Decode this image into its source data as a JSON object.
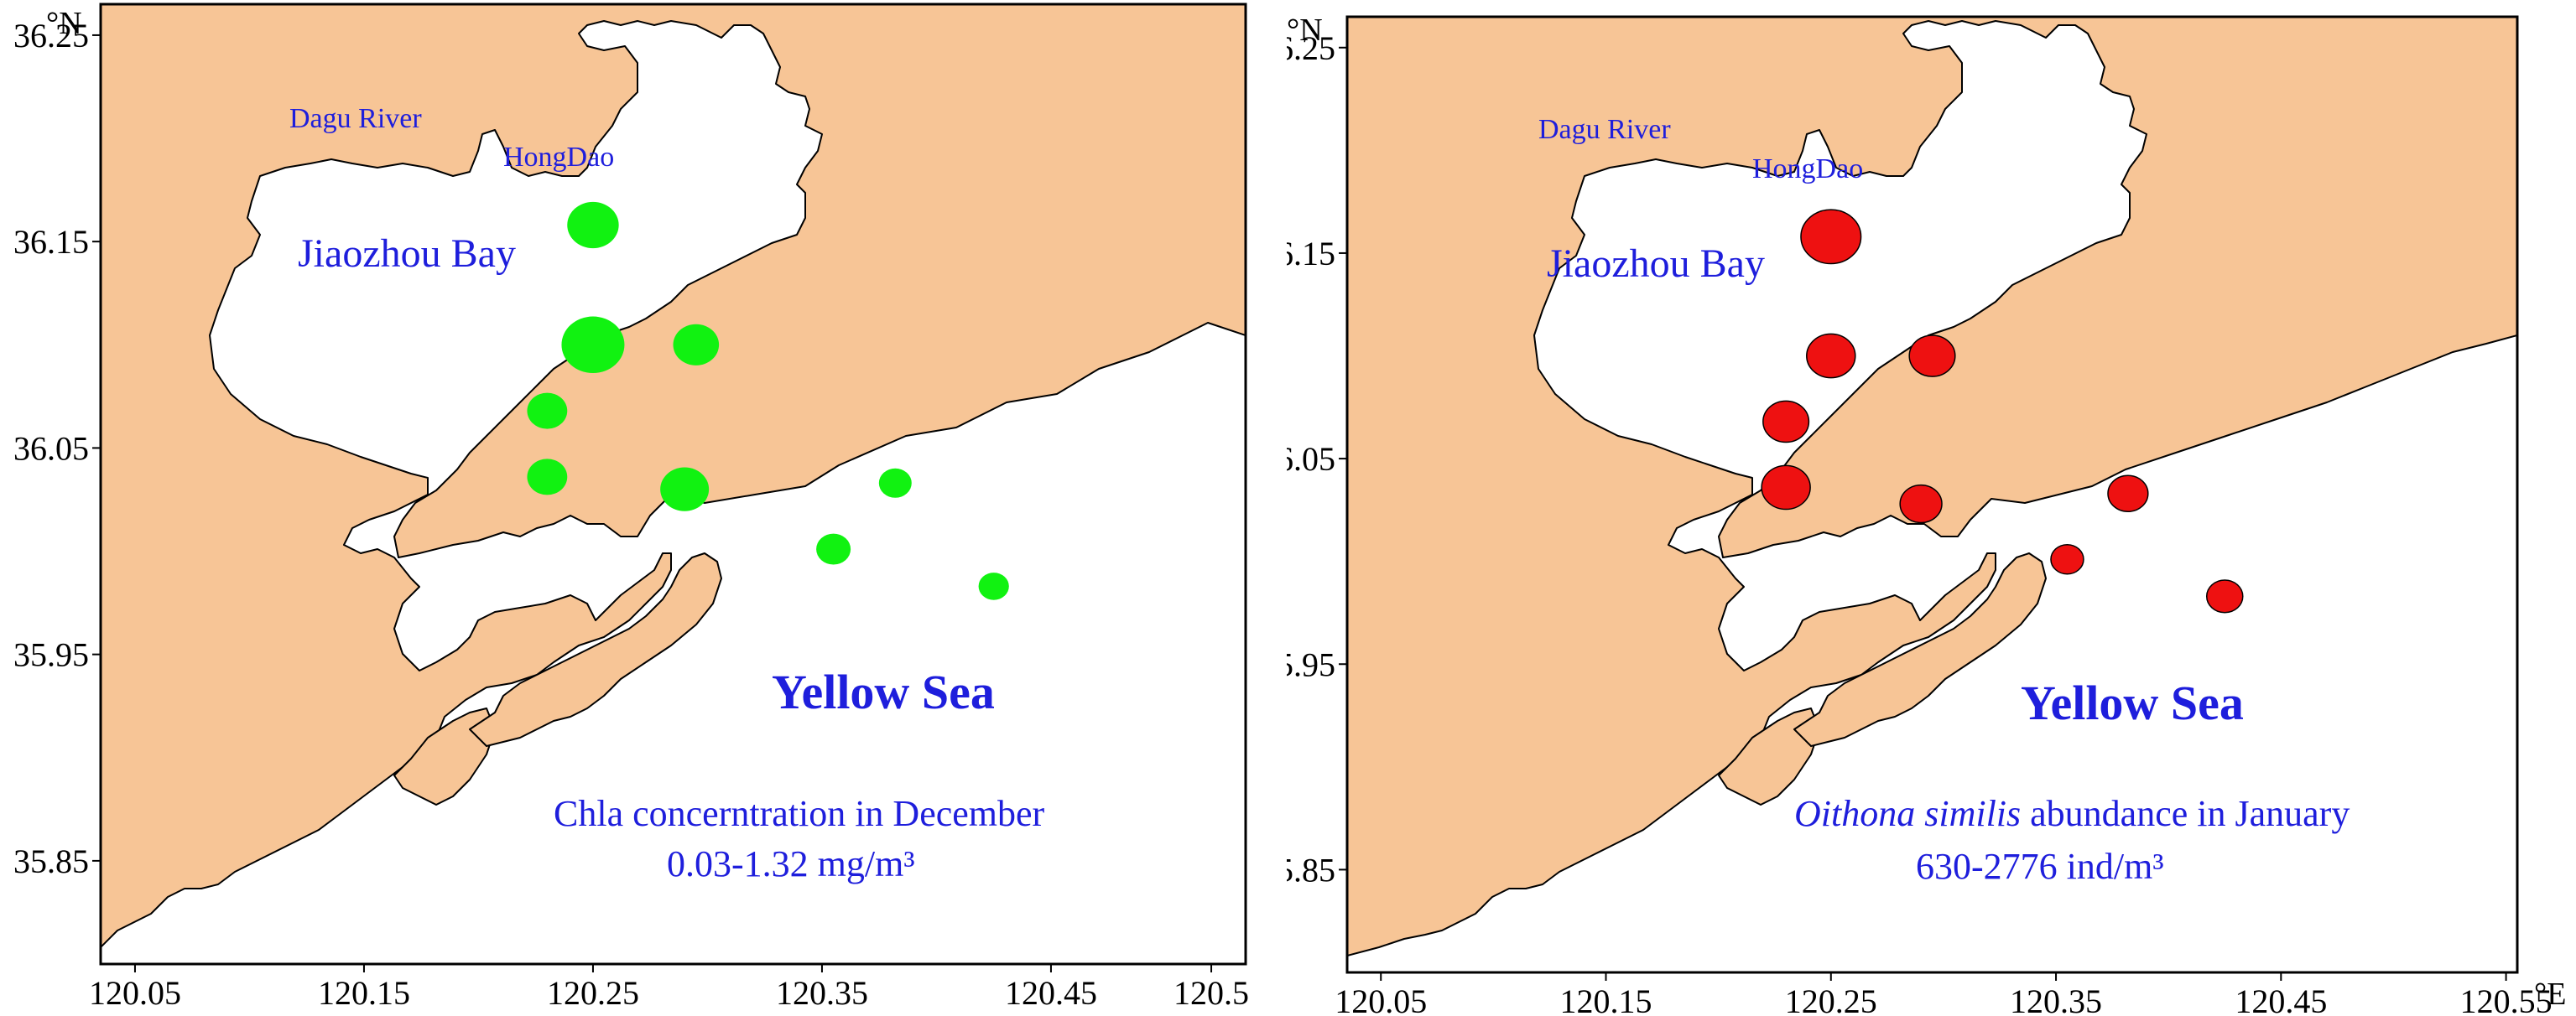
{
  "axes": {
    "lat_unit": "°N",
    "lon_unit": "°E",
    "lat_ticks": [
      "36.25",
      "36.15",
      "36.05",
      "35.95",
      "35.85"
    ],
    "lon_ticks_left": [
      "120.05",
      "120.15",
      "120.25",
      "120.35",
      "120.45",
      "120.5"
    ],
    "lon_ticks_right": [
      "120.05",
      "120.15",
      "120.25",
      "120.35",
      "120.45",
      "120.55"
    ]
  },
  "places": {
    "river": "Dagu River",
    "island": "HongDao",
    "bay": "Jiaozhou Bay",
    "sea": "Yellow Sea"
  },
  "panels": [
    {
      "caption_line1": "Chla concerntration in December",
      "caption_line2": "0.03-1.32 mg/m³",
      "dot_color": "#11f211",
      "stations": [
        {
          "lon": 120.25,
          "lat": 36.158,
          "size": 0.55
        },
        {
          "lon": 120.25,
          "lat": 36.1,
          "size": 0.75
        },
        {
          "lon": 120.295,
          "lat": 36.1,
          "size": 0.45
        },
        {
          "lon": 120.23,
          "lat": 36.068,
          "size": 0.35
        },
        {
          "lon": 120.23,
          "lat": 36.036,
          "size": 0.35
        },
        {
          "lon": 120.29,
          "lat": 36.03,
          "size": 0.5
        },
        {
          "lon": 120.355,
          "lat": 36.001,
          "size": 0.25
        },
        {
          "lon": 120.382,
          "lat": 36.033,
          "size": 0.22
        },
        {
          "lon": 120.425,
          "lat": 35.983,
          "size": 0.18
        }
      ]
    },
    {
      "caption_italic": "Oithona similis",
      "caption_rest": " abundance in January",
      "caption_line2": "630-2776 ind/m³",
      "dot_color": "#ee1111",
      "stations": [
        {
          "lon": 120.25,
          "lat": 36.158,
          "size": 0.7
        },
        {
          "lon": 120.25,
          "lat": 36.1,
          "size": 0.5
        },
        {
          "lon": 120.295,
          "lat": 36.1,
          "size": 0.45
        },
        {
          "lon": 120.23,
          "lat": 36.068,
          "size": 0.45
        },
        {
          "lon": 120.23,
          "lat": 36.036,
          "size": 0.5
        },
        {
          "lon": 120.29,
          "lat": 36.028,
          "size": 0.38
        },
        {
          "lon": 120.355,
          "lat": 36.001,
          "size": 0.22
        },
        {
          "lon": 120.382,
          "lat": 36.033,
          "size": 0.35
        },
        {
          "lon": 120.425,
          "lat": 35.983,
          "size": 0.28
        }
      ]
    }
  ]
}
